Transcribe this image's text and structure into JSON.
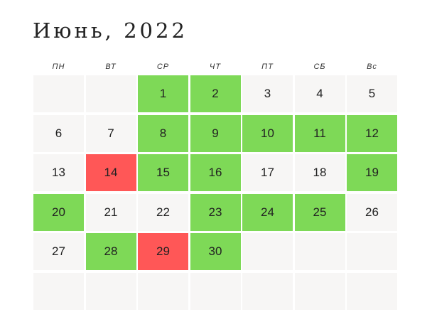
{
  "header": {
    "title": "Июнь, 2022"
  },
  "weekdays": [
    "ПН",
    "ВТ",
    "СР",
    "ЧТ",
    "ПТ",
    "СБ",
    "Вс"
  ],
  "weeks": [
    [
      {
        "day": null,
        "color": "#f7f6f5"
      },
      {
        "day": null,
        "color": "#f7f6f5"
      },
      {
        "day": 1,
        "color": "#7ed957"
      },
      {
        "day": 2,
        "color": "#7ed957"
      },
      {
        "day": 3,
        "color": "#f7f6f5"
      },
      {
        "day": 4,
        "color": "#f7f6f5"
      },
      {
        "day": 5,
        "color": "#f7f6f5"
      }
    ],
    [
      {
        "day": 6,
        "color": "#f7f6f5"
      },
      {
        "day": 7,
        "color": "#f7f6f5"
      },
      {
        "day": 8,
        "color": "#7ed957"
      },
      {
        "day": 9,
        "color": "#7ed957"
      },
      {
        "day": 10,
        "color": "#7ed957"
      },
      {
        "day": 11,
        "color": "#7ed957"
      },
      {
        "day": 12,
        "color": "#7ed957"
      }
    ],
    [
      {
        "day": 13,
        "color": "#f7f6f5"
      },
      {
        "day": 14,
        "color": "#ff5757"
      },
      {
        "day": 15,
        "color": "#7ed957"
      },
      {
        "day": 16,
        "color": "#7ed957"
      },
      {
        "day": 17,
        "color": "#f7f6f5"
      },
      {
        "day": 18,
        "color": "#f7f6f5"
      },
      {
        "day": 19,
        "color": "#7ed957"
      }
    ],
    [
      {
        "day": 20,
        "color": "#7ed957"
      },
      {
        "day": 21,
        "color": "#f7f6f5"
      },
      {
        "day": 22,
        "color": "#f7f6f5"
      },
      {
        "day": 23,
        "color": "#7ed957"
      },
      {
        "day": 24,
        "color": "#7ed957"
      },
      {
        "day": 25,
        "color": "#7ed957"
      },
      {
        "day": 26,
        "color": "#f7f6f5"
      }
    ],
    [
      {
        "day": 27,
        "color": "#f7f6f5"
      },
      {
        "day": 28,
        "color": "#7ed957"
      },
      {
        "day": 29,
        "color": "#ff5757"
      },
      {
        "day": 30,
        "color": "#7ed957"
      },
      {
        "day": null,
        "color": "#f7f6f5"
      },
      {
        "day": null,
        "color": "#f7f6f5"
      },
      {
        "day": null,
        "color": "#f7f6f5"
      }
    ],
    [
      {
        "day": null,
        "color": "#f7f6f5"
      },
      {
        "day": null,
        "color": "#f7f6f5"
      },
      {
        "day": null,
        "color": "#f7f6f5"
      },
      {
        "day": null,
        "color": "#f7f6f5"
      },
      {
        "day": null,
        "color": "#f7f6f5"
      },
      {
        "day": null,
        "color": "#f7f6f5"
      },
      {
        "day": null,
        "color": "#f7f6f5"
      }
    ]
  ]
}
